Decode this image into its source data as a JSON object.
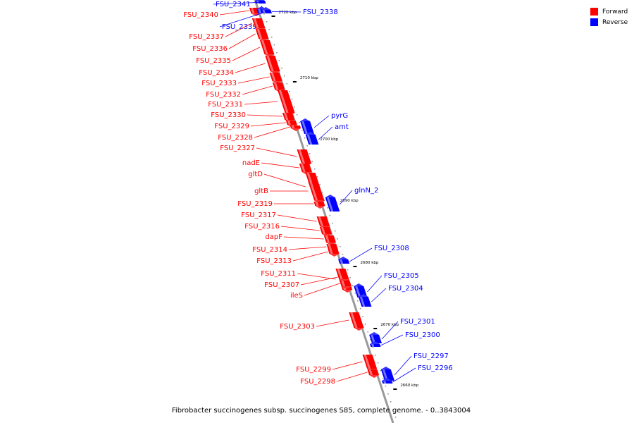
{
  "title": "Fibrobacter succinogenes subsp. succinogenes S85, complete genome. - 0..3843004",
  "legend": [
    {
      "label": "Forward",
      "color": "#ff0000"
    },
    {
      "label": "Reverse",
      "color": "#0000ff"
    }
  ],
  "colors": {
    "forward": "#ff0000",
    "reverse": "#0000ff",
    "axis": "#999999"
  },
  "ticks": [
    "2720 kbp",
    "2710 kbp",
    "2700 kbp",
    "2690 kbp",
    "2680 kbp",
    "2670 kbp",
    "2660 kbp"
  ],
  "genes": [
    {
      "name": "FSU_2341",
      "strand": "reverse"
    },
    {
      "name": "FSU_2340",
      "strand": "forward"
    },
    {
      "name": "FSU_2339",
      "strand": "reverse"
    },
    {
      "name": "FSU_2338",
      "strand": "reverse"
    },
    {
      "name": "FSU_2337",
      "strand": "forward"
    },
    {
      "name": "FSU_2336",
      "strand": "forward"
    },
    {
      "name": "FSU_2335",
      "strand": "forward"
    },
    {
      "name": "FSU_2334",
      "strand": "forward"
    },
    {
      "name": "FSU_2333",
      "strand": "forward"
    },
    {
      "name": "FSU_2332",
      "strand": "forward"
    },
    {
      "name": "FSU_2331",
      "strand": "forward"
    },
    {
      "name": "FSU_2330",
      "strand": "forward"
    },
    {
      "name": "pyrG",
      "strand": "reverse"
    },
    {
      "name": "FSU_2329",
      "strand": "forward"
    },
    {
      "name": "amt",
      "strand": "reverse"
    },
    {
      "name": "FSU_2328",
      "strand": "forward"
    },
    {
      "name": "FSU_2327",
      "strand": "forward"
    },
    {
      "name": "nadE",
      "strand": "forward"
    },
    {
      "name": "gltD",
      "strand": "forward"
    },
    {
      "name": "gltB",
      "strand": "forward"
    },
    {
      "name": "glnN_2",
      "strand": "reverse"
    },
    {
      "name": "FSU_2319",
      "strand": "forward"
    },
    {
      "name": "FSU_2317",
      "strand": "forward"
    },
    {
      "name": "FSU_2316",
      "strand": "forward"
    },
    {
      "name": "dapF",
      "strand": "forward"
    },
    {
      "name": "FSU_2308",
      "strand": "reverse"
    },
    {
      "name": "FSU_2314",
      "strand": "forward"
    },
    {
      "name": "FSU_2313",
      "strand": "forward"
    },
    {
      "name": "FSU_2311",
      "strand": "forward"
    },
    {
      "name": "FSU_2305",
      "strand": "reverse"
    },
    {
      "name": "FSU_2307",
      "strand": "forward"
    },
    {
      "name": "FSU_2304",
      "strand": "reverse"
    },
    {
      "name": "ileS",
      "strand": "forward"
    },
    {
      "name": "FSU_2303",
      "strand": "forward"
    },
    {
      "name": "FSU_2301",
      "strand": "reverse"
    },
    {
      "name": "FSU_2300",
      "strand": "reverse"
    },
    {
      "name": "FSU_2297",
      "strand": "reverse"
    },
    {
      "name": "FSU_2299",
      "strand": "forward"
    },
    {
      "name": "FSU_2296",
      "strand": "reverse"
    },
    {
      "name": "FSU_2298",
      "strand": "forward"
    }
  ]
}
